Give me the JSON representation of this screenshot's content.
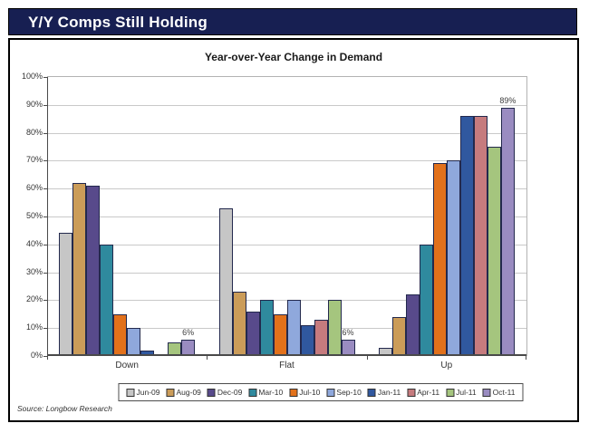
{
  "header": {
    "title": "Y/Y Comps Still Holding"
  },
  "chart": {
    "title": "Year-over-Year Change in Demand",
    "source": "Source: Longbow Research"
  },
  "colors": {
    "header_bg": "#171F52",
    "bar_border": "#23294D",
    "gridline": "#C9C9C9",
    "axis": "#4A4A4A"
  },
  "chart_data": {
    "type": "bar",
    "title": "Year-over-Year Change in Demand",
    "categories": [
      "Down",
      "Flat",
      "Up"
    ],
    "series": [
      {
        "name": "Jun-09",
        "color": "#C6C6C6",
        "values": [
          44,
          53,
          3
        ]
      },
      {
        "name": "Aug-09",
        "color": "#CB9C59",
        "values": [
          62,
          23,
          14
        ]
      },
      {
        "name": "Dec-09",
        "color": "#584A8B",
        "values": [
          61,
          16,
          22
        ]
      },
      {
        "name": "Mar-10",
        "color": "#2F8A9E",
        "values": [
          40,
          20,
          40
        ]
      },
      {
        "name": "Jul-10",
        "color": "#E2711B",
        "values": [
          15,
          15,
          69
        ]
      },
      {
        "name": "Sep-10",
        "color": "#8FA8DC",
        "values": [
          10,
          20,
          70
        ]
      },
      {
        "name": "Jan-11",
        "color": "#30589F",
        "values": [
          2,
          11,
          86
        ]
      },
      {
        "name": "Apr-11",
        "color": "#C67B7E",
        "values": [
          0,
          13,
          86
        ]
      },
      {
        "name": "Jul-11",
        "color": "#A5C57E",
        "values": [
          5,
          20,
          75
        ]
      },
      {
        "name": "Oct-11",
        "color": "#9A8CC1",
        "values": [
          6,
          6,
          89
        ],
        "labels": [
          "6%",
          "6%",
          "89%"
        ]
      }
    ],
    "ylim": [
      0,
      100
    ],
    "ytick_step": 10,
    "yticks": [
      "0%",
      "10%",
      "20%",
      "30%",
      "40%",
      "50%",
      "60%",
      "70%",
      "80%",
      "90%",
      "100%"
    ],
    "grid": true,
    "legend_position": "bottom"
  }
}
